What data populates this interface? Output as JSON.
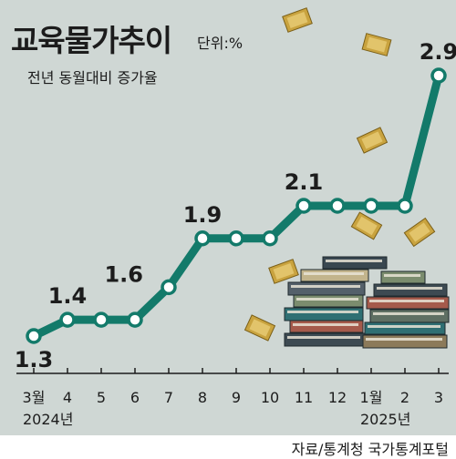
{
  "header": {
    "title": "교육물가추이",
    "unit": "단위:%",
    "subtitle": "전년 동월대비 증가율"
  },
  "footer": {
    "source": "자료/통계청 국가통계포털"
  },
  "colors": {
    "panel": "#cfd7d4",
    "line": "#137a6a",
    "marker_fill": "#ffffff",
    "text": "#1c1c1c"
  },
  "chart_data": {
    "type": "line",
    "categories": [
      "3월",
      "4",
      "5",
      "6",
      "7",
      "8",
      "9",
      "10",
      "11",
      "12",
      "1월",
      "2",
      "3"
    ],
    "year_labels": [
      {
        "text": "2024년",
        "at_index": 0
      },
      {
        "text": "2025년",
        "at_index": 10
      }
    ],
    "series": [
      {
        "values": [
          1.3,
          1.4,
          1.4,
          1.4,
          1.6,
          1.9,
          1.9,
          1.9,
          2.1,
          2.1,
          2.1,
          2.1,
          2.9
        ]
      }
    ],
    "value_labels": [
      {
        "index": 0,
        "text": "1.3",
        "position": "below"
      },
      {
        "index": 1,
        "text": "1.4",
        "position": "above"
      },
      {
        "index": 4,
        "text": "1.6",
        "position": "left"
      },
      {
        "index": 5,
        "text": "1.9",
        "position": "above"
      },
      {
        "index": 8,
        "text": "2.1",
        "position": "above"
      },
      {
        "index": 12,
        "text": "2.9",
        "position": "above"
      }
    ],
    "grid": false,
    "legend": "none",
    "illustration": "stacked-books-and-flying-money"
  }
}
